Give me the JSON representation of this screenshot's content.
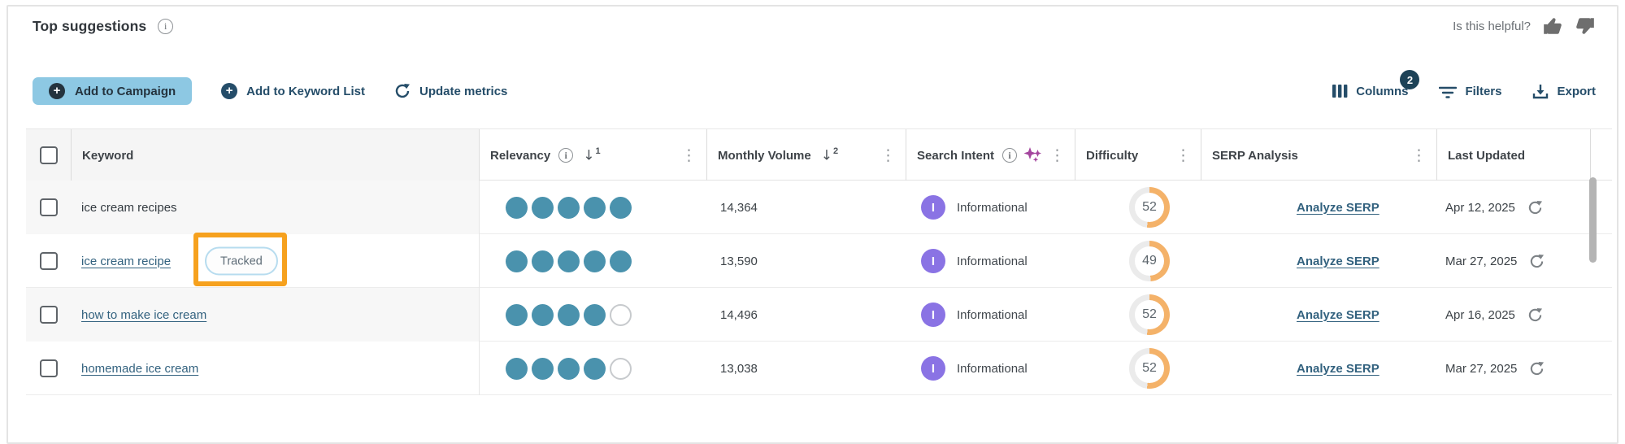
{
  "header": {
    "title": "Top suggestions",
    "helpful_prompt": "Is this helpful?"
  },
  "toolbar": {
    "add_to_campaign_label": "Add to Campaign",
    "add_to_keyword_list_label": "Add to Keyword List",
    "update_metrics_label": "Update metrics",
    "columns_label": "Columns",
    "columns_badge_count": "2",
    "filters_label": "Filters",
    "export_label": "Export"
  },
  "glyphs": {
    "plus": "+",
    "kebab": "⋮",
    "sort_arrow": "↓",
    "info": "i"
  },
  "colors": {
    "accent_button_blue": "#8dc8e3",
    "navy": "#254d69",
    "relevancy_teal": "#4a92ad",
    "intent_purple": "#8a73e4",
    "difficulty_orange": "#f4b269",
    "difficulty_track": "#ebebeb",
    "annotation_orange": "#f6a11e",
    "link_blue": "#33627f"
  },
  "table": {
    "columns": [
      {
        "key": "select",
        "label": "",
        "has_info": false,
        "has_ai_icon": false,
        "sort_rank": null,
        "has_kebab": false
      },
      {
        "key": "keyword",
        "label": "Keyword",
        "has_info": false,
        "has_ai_icon": false,
        "sort_rank": null,
        "has_kebab": false
      },
      {
        "key": "relevancy",
        "label": "Relevancy",
        "has_info": true,
        "has_ai_icon": false,
        "sort_rank": "1",
        "has_kebab": true
      },
      {
        "key": "volume",
        "label": "Monthly Volume",
        "has_info": false,
        "has_ai_icon": false,
        "sort_rank": "2",
        "has_kebab": true
      },
      {
        "key": "intent",
        "label": "Search Intent",
        "has_info": true,
        "has_ai_icon": true,
        "sort_rank": null,
        "has_kebab": true
      },
      {
        "key": "difficulty",
        "label": "Difficulty",
        "has_info": false,
        "has_ai_icon": false,
        "sort_rank": null,
        "has_kebab": true
      },
      {
        "key": "serp",
        "label": "SERP Analysis",
        "has_info": false,
        "has_ai_icon": false,
        "sort_rank": null,
        "has_kebab": true
      },
      {
        "key": "updated",
        "label": "Last Updated",
        "has_info": false,
        "has_ai_icon": false,
        "sort_rank": null,
        "has_kebab": false
      }
    ],
    "rows": [
      {
        "keyword": "ice cream recipes",
        "keyword_is_link": false,
        "tracked_badge": null,
        "relevancy_filled": 5,
        "relevancy_total": 5,
        "monthly_volume": "14,364",
        "intent_initial": "I",
        "search_intent": "Informational",
        "difficulty": 52,
        "serp_link": "Analyze SERP",
        "last_updated": "Apr 12, 2025"
      },
      {
        "keyword": "ice cream recipe",
        "keyword_is_link": true,
        "tracked_badge": "Tracked",
        "relevancy_filled": 5,
        "relevancy_total": 5,
        "monthly_volume": "13,590",
        "intent_initial": "I",
        "search_intent": "Informational",
        "difficulty": 49,
        "serp_link": "Analyze SERP",
        "last_updated": "Mar 27, 2025"
      },
      {
        "keyword": "how to make ice cream",
        "keyword_is_link": true,
        "tracked_badge": null,
        "relevancy_filled": 4,
        "relevancy_total": 5,
        "monthly_volume": "14,496",
        "intent_initial": "I",
        "search_intent": "Informational",
        "difficulty": 52,
        "serp_link": "Analyze SERP",
        "last_updated": "Apr 16, 2025"
      },
      {
        "keyword": "homemade ice cream",
        "keyword_is_link": true,
        "tracked_badge": null,
        "relevancy_filled": 4,
        "relevancy_total": 5,
        "monthly_volume": "13,038",
        "intent_initial": "I",
        "search_intent": "Informational",
        "difficulty": 52,
        "serp_link": "Analyze SERP",
        "last_updated": "Mar 27, 2025"
      }
    ]
  }
}
